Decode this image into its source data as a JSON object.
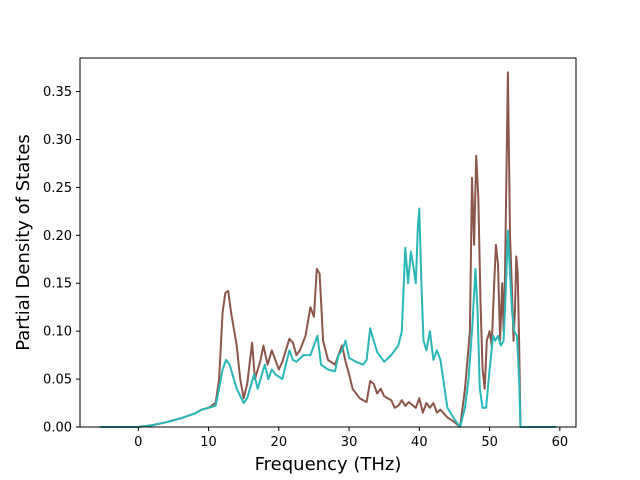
{
  "chart_data": {
    "type": "line",
    "xlabel": "Frequency (THz)",
    "ylabel": "Partial Density of States",
    "xlim": [
      -8.3,
      62.3
    ],
    "ylim": [
      0,
      0.385
    ],
    "xticks": [
      0,
      10,
      20,
      30,
      40,
      50,
      60
    ],
    "yticks": [
      0.0,
      0.05,
      0.1,
      0.15,
      0.2,
      0.25,
      0.3,
      0.35
    ],
    "grid": false,
    "legend": "none",
    "series": [
      {
        "color": "#8c564b",
        "points": [
          [
            -5.5,
            0
          ],
          [
            0,
            0
          ],
          [
            2,
            0.002
          ],
          [
            4,
            0.005
          ],
          [
            6,
            0.009
          ],
          [
            8,
            0.014
          ],
          [
            9,
            0.018
          ],
          [
            10,
            0.02
          ],
          [
            11,
            0.025
          ],
          [
            11.5,
            0.05
          ],
          [
            12,
            0.12
          ],
          [
            12.4,
            0.14
          ],
          [
            12.8,
            0.142
          ],
          [
            13.2,
            0.12
          ],
          [
            14,
            0.085
          ],
          [
            14.5,
            0.05
          ],
          [
            15,
            0.03
          ],
          [
            15.5,
            0.045
          ],
          [
            16.2,
            0.088
          ],
          [
            16.6,
            0.05
          ],
          [
            17.4,
            0.07
          ],
          [
            17.8,
            0.085
          ],
          [
            18.4,
            0.065
          ],
          [
            19,
            0.08
          ],
          [
            19.5,
            0.07
          ],
          [
            20,
            0.06
          ],
          [
            20.5,
            0.068
          ],
          [
            21.5,
            0.092
          ],
          [
            22,
            0.088
          ],
          [
            22.5,
            0.075
          ],
          [
            23,
            0.08
          ],
          [
            23.8,
            0.095
          ],
          [
            24.5,
            0.125
          ],
          [
            25,
            0.115
          ],
          [
            25.4,
            0.165
          ],
          [
            25.8,
            0.16
          ],
          [
            26.3,
            0.09
          ],
          [
            27,
            0.07
          ],
          [
            28,
            0.065
          ],
          [
            28.5,
            0.075
          ],
          [
            29,
            0.085
          ],
          [
            29.5,
            0.068
          ],
          [
            30,
            0.055
          ],
          [
            30.5,
            0.04
          ],
          [
            31.5,
            0.03
          ],
          [
            32.5,
            0.026
          ],
          [
            33,
            0.048
          ],
          [
            33.5,
            0.045
          ],
          [
            34,
            0.035
          ],
          [
            34.5,
            0.04
          ],
          [
            35,
            0.032
          ],
          [
            36,
            0.028
          ],
          [
            36.5,
            0.02
          ],
          [
            37,
            0.022
          ],
          [
            37.5,
            0.028
          ],
          [
            38,
            0.022
          ],
          [
            38.5,
            0.026
          ],
          [
            39.5,
            0.02
          ],
          [
            40,
            0.03
          ],
          [
            40.5,
            0.015
          ],
          [
            41,
            0.025
          ],
          [
            41.5,
            0.02
          ],
          [
            42,
            0.025
          ],
          [
            42.5,
            0.015
          ],
          [
            43,
            0.018
          ],
          [
            44,
            0.01
          ],
          [
            45,
            0.005
          ],
          [
            45.8,
            0
          ],
          [
            46.5,
            0.04
          ],
          [
            47.2,
            0.1
          ],
          [
            47.5,
            0.26
          ],
          [
            47.8,
            0.19
          ],
          [
            48.1,
            0.283
          ],
          [
            48.4,
            0.24
          ],
          [
            48.7,
            0.13
          ],
          [
            49,
            0.06
          ],
          [
            49.3,
            0.04
          ],
          [
            49.6,
            0.09
          ],
          [
            50,
            0.1
          ],
          [
            50.3,
            0.085
          ],
          [
            50.6,
            0.14
          ],
          [
            50.9,
            0.19
          ],
          [
            51.2,
            0.17
          ],
          [
            51.5,
            0.09
          ],
          [
            51.8,
            0.15
          ],
          [
            52,
            0.1
          ],
          [
            52.2,
            0.16
          ],
          [
            52.6,
            0.37
          ],
          [
            52.9,
            0.2
          ],
          [
            53.2,
            0.14
          ],
          [
            53.4,
            0.09
          ],
          [
            53.6,
            0.12
          ],
          [
            53.8,
            0.178
          ],
          [
            54,
            0.16
          ],
          [
            54.2,
            0.09
          ],
          [
            54.4,
            0
          ],
          [
            59.5,
            0
          ]
        ]
      },
      {
        "color": "#2bb7b8",
        "points": [
          [
            -5.5,
            0
          ],
          [
            0,
            0
          ],
          [
            2,
            0.002
          ],
          [
            4,
            0.005
          ],
          [
            6,
            0.009
          ],
          [
            8,
            0.014
          ],
          [
            9,
            0.018
          ],
          [
            10,
            0.02
          ],
          [
            11,
            0.022
          ],
          [
            11.5,
            0.04
          ],
          [
            12,
            0.06
          ],
          [
            12.5,
            0.07
          ],
          [
            13,
            0.065
          ],
          [
            14,
            0.04
          ],
          [
            15,
            0.025
          ],
          [
            15.5,
            0.03
          ],
          [
            16.5,
            0.055
          ],
          [
            17,
            0.04
          ],
          [
            18,
            0.065
          ],
          [
            18.5,
            0.05
          ],
          [
            19,
            0.06
          ],
          [
            19.5,
            0.055
          ],
          [
            20.5,
            0.05
          ],
          [
            21.5,
            0.08
          ],
          [
            22,
            0.07
          ],
          [
            22.5,
            0.068
          ],
          [
            23.5,
            0.075
          ],
          [
            24.5,
            0.075
          ],
          [
            25,
            0.085
          ],
          [
            25.5,
            0.095
          ],
          [
            26,
            0.065
          ],
          [
            27,
            0.06
          ],
          [
            28,
            0.058
          ],
          [
            28.5,
            0.075
          ],
          [
            29,
            0.08
          ],
          [
            29.5,
            0.09
          ],
          [
            30,
            0.072
          ],
          [
            31,
            0.068
          ],
          [
            32,
            0.065
          ],
          [
            32.5,
            0.07
          ],
          [
            33,
            0.103
          ],
          [
            33.5,
            0.09
          ],
          [
            34,
            0.078
          ],
          [
            35,
            0.068
          ],
          [
            36,
            0.075
          ],
          [
            37,
            0.085
          ],
          [
            37.5,
            0.1
          ],
          [
            38,
            0.187
          ],
          [
            38.4,
            0.15
          ],
          [
            38.8,
            0.183
          ],
          [
            39.1,
            0.17
          ],
          [
            39.5,
            0.15
          ],
          [
            39.8,
            0.21
          ],
          [
            40,
            0.228
          ],
          [
            40.3,
            0.15
          ],
          [
            40.6,
            0.09
          ],
          [
            41,
            0.08
          ],
          [
            41.5,
            0.1
          ],
          [
            42,
            0.07
          ],
          [
            42.5,
            0.08
          ],
          [
            43,
            0.07
          ],
          [
            43.5,
            0.045
          ],
          [
            44,
            0.02
          ],
          [
            45,
            0.008
          ],
          [
            45.8,
            0
          ],
          [
            46.5,
            0.02
          ],
          [
            47,
            0.05
          ],
          [
            47.5,
            0.1
          ],
          [
            48,
            0.165
          ],
          [
            48.3,
            0.12
          ],
          [
            48.6,
            0.04
          ],
          [
            49,
            0.02
          ],
          [
            49.5,
            0.02
          ],
          [
            50,
            0.06
          ],
          [
            50.5,
            0.095
          ],
          [
            50.8,
            0.09
          ],
          [
            51.2,
            0.095
          ],
          [
            51.6,
            0.085
          ],
          [
            52,
            0.09
          ],
          [
            52.3,
            0.14
          ],
          [
            52.6,
            0.205
          ],
          [
            52.9,
            0.16
          ],
          [
            53.2,
            0.12
          ],
          [
            53.5,
            0.1
          ],
          [
            53.9,
            0.095
          ],
          [
            54.2,
            0.05
          ],
          [
            54.4,
            0
          ],
          [
            59.5,
            0
          ]
        ]
      }
    ]
  }
}
